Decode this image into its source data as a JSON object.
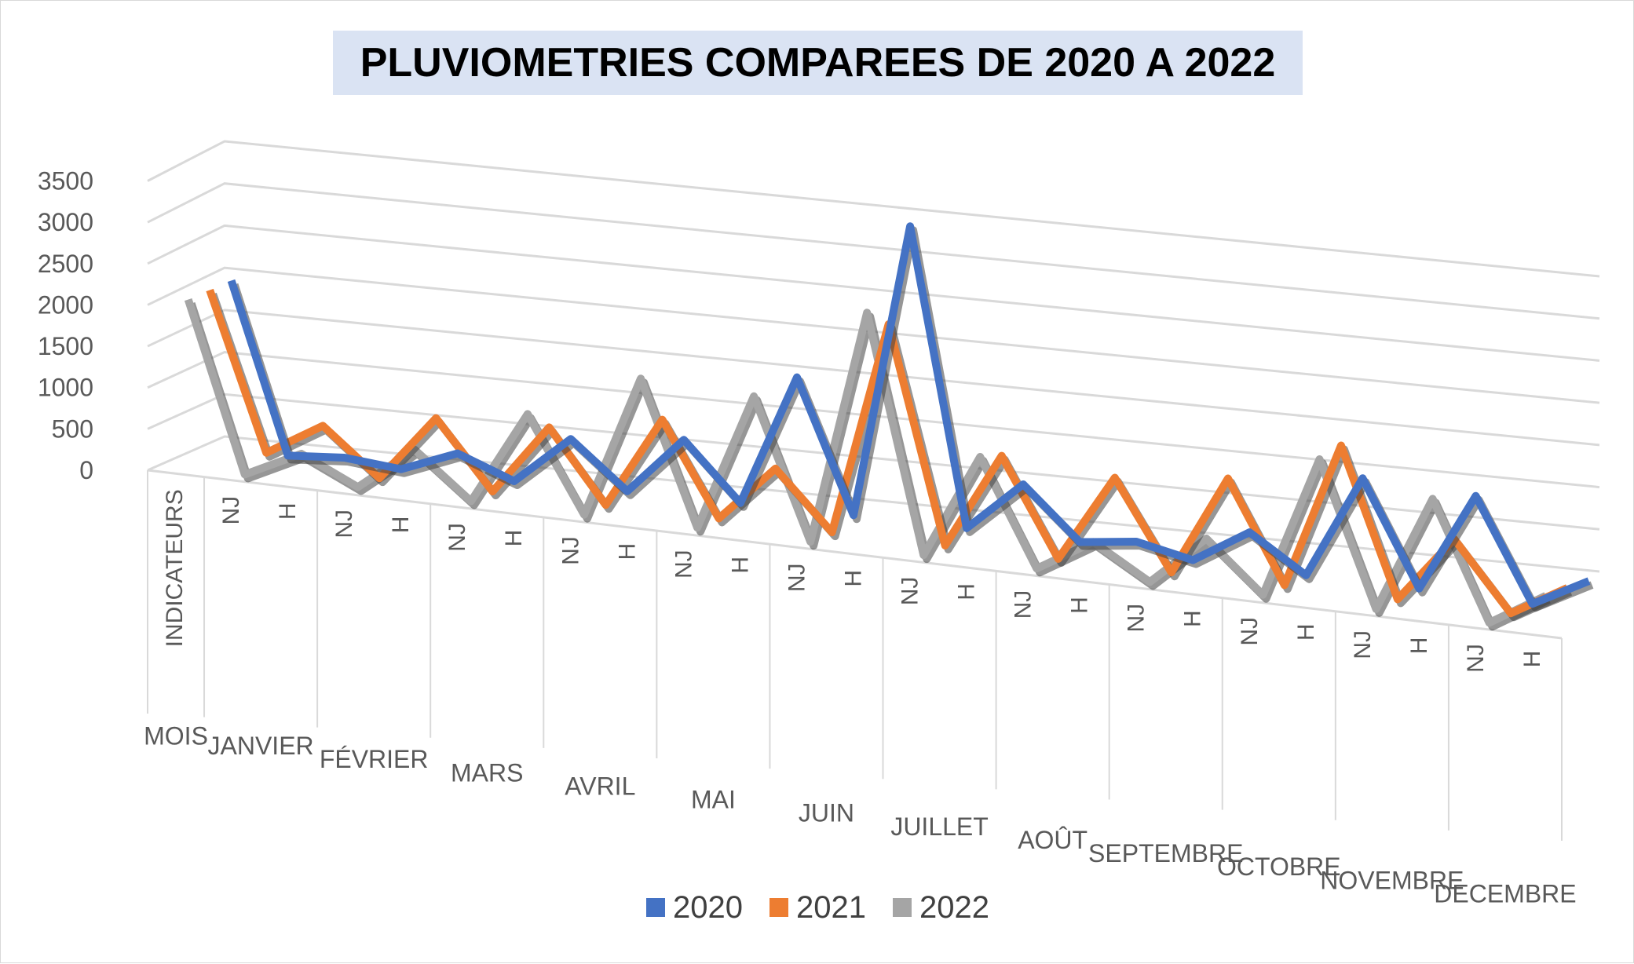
{
  "chart_data": {
    "type": "line",
    "title": "PLUVIOMETRIES COMPAREES DE 2020 A 2022",
    "xlabel": "",
    "ylabel": "",
    "ylim": [
      0,
      3500
    ],
    "yticks": [
      "3500",
      "3000",
      "2500",
      "2000",
      "1500",
      "1000",
      "500",
      "0"
    ],
    "grid": true,
    "legend_position": "bottom",
    "categories": [
      "INDICATEURS",
      "NJ",
      "H",
      "NJ",
      "H",
      "NJ",
      "H",
      "NJ",
      "H",
      "NJ",
      "H",
      "NJ",
      "H",
      "NJ",
      "H",
      "NJ",
      "H",
      "NJ",
      "H",
      "NJ",
      "H",
      "NJ",
      "H",
      "NJ",
      "H"
    ],
    "groups": [
      {
        "label": "MOIS",
        "span": 1
      },
      {
        "label": "JANVIER",
        "span": 2
      },
      {
        "label": "FÉVRIER",
        "span": 2
      },
      {
        "label": "MARS",
        "span": 2
      },
      {
        "label": "AVRIL",
        "span": 2
      },
      {
        "label": "MAI",
        "span": 2
      },
      {
        "label": "JUIN",
        "span": 2
      },
      {
        "label": "JUILLET",
        "span": 2
      },
      {
        "label": "AOÛT",
        "span": 2
      },
      {
        "label": "SEPTEMBRE",
        "span": 2
      },
      {
        "label": "OCTOBRE",
        "span": 2
      },
      {
        "label": "NOVEMBRE",
        "span": 2
      },
      {
        "label": "DECEMBRE",
        "span": 2
      }
    ],
    "series": [
      {
        "name": "2020",
        "color": "#4472c4",
        "values": [
          2000,
          5,
          60,
          3,
          270,
          20,
          600,
          60,
          750,
          80,
          1650,
          95,
          3600,
          100,
          700,
          95,
          180,
          40,
          450,
          20,
          1250,
          22,
          1200,
          0,
          350
        ]
      },
      {
        "name": "2021",
        "color": "#ed7d31",
        "values": [
          2000,
          150,
          550,
          8,
          800,
          10,
          850,
          10,
          1100,
          9,
          680,
          4,
          2550,
          7,
          1150,
          8,
          1050,
          6,
          1200,
          15,
          1750,
          7,
          800,
          0,
          380
        ]
      },
      {
        "name": "2022",
        "color": "#a5a5a5",
        "values": [
          2000,
          5,
          330,
          15,
          540,
          7,
          1120,
          6,
          1700,
          11,
          1650,
          4,
          2800,
          5,
          1250,
          5,
          400,
          5,
          600,
          12,
          1700,
          3,
          1390,
          0,
          400
        ]
      }
    ]
  }
}
